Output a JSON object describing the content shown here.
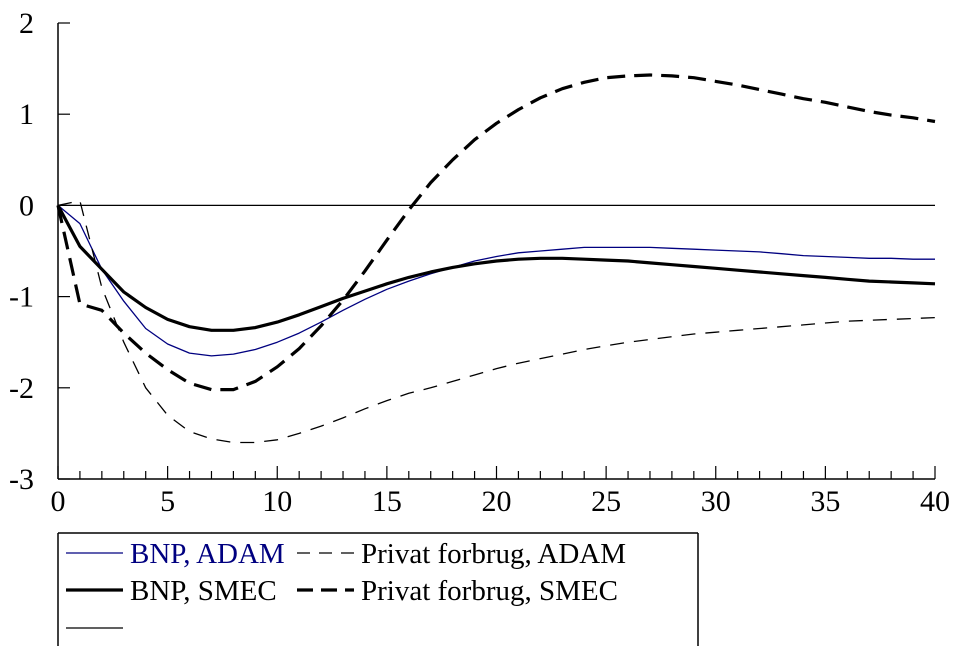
{
  "chart_data": {
    "type": "line",
    "title": "",
    "xlabel": "",
    "ylabel": "",
    "xlim": [
      0,
      40
    ],
    "ylim": [
      -3,
      2
    ],
    "x_ticks": [
      0,
      5,
      10,
      15,
      20,
      25,
      30,
      35,
      40
    ],
    "y_ticks": [
      2,
      1,
      0,
      -1,
      -2,
      -3
    ],
    "x_tick_labels": [
      "0",
      "5",
      "10",
      "15",
      "20",
      "25",
      "30",
      "35",
      "40"
    ],
    "y_tick_labels": [
      "2",
      "1",
      "0",
      "-1",
      "-2",
      "-3"
    ],
    "zero_line": true,
    "grid": false,
    "legend_position": "bottom-left",
    "series": [
      {
        "name": "BNP, ADAM",
        "color": "#000080",
        "style": "thin-solid",
        "x": [
          0,
          1,
          2,
          3,
          4,
          5,
          6,
          7,
          8,
          9,
          10,
          11,
          12,
          13,
          14,
          15,
          16,
          17,
          18,
          19,
          20,
          21,
          22,
          23,
          24,
          25,
          26,
          27,
          28,
          29,
          30,
          31,
          32,
          33,
          34,
          35,
          36,
          37,
          38,
          39,
          40
        ],
        "y": [
          0,
          -0.2,
          -0.7,
          -1.05,
          -1.35,
          -1.52,
          -1.62,
          -1.65,
          -1.63,
          -1.58,
          -1.5,
          -1.4,
          -1.28,
          -1.15,
          -1.03,
          -0.92,
          -0.83,
          -0.75,
          -0.68,
          -0.61,
          -0.56,
          -0.52,
          -0.5,
          -0.48,
          -0.46,
          -0.46,
          -0.46,
          -0.46,
          -0.47,
          -0.48,
          -0.49,
          -0.5,
          -0.51,
          -0.53,
          -0.55,
          -0.56,
          -0.57,
          -0.58,
          -0.58,
          -0.59,
          -0.59
        ]
      },
      {
        "name": "Privat forbrug, ADAM",
        "color": "#000000",
        "style": "thin-dashed",
        "x": [
          0,
          1,
          2,
          3,
          4,
          5,
          6,
          7,
          8,
          9,
          10,
          11,
          12,
          13,
          14,
          15,
          16,
          17,
          18,
          19,
          20,
          21,
          22,
          23,
          24,
          25,
          26,
          27,
          28,
          29,
          30,
          31,
          32,
          33,
          34,
          35,
          36,
          37,
          38,
          39,
          40
        ],
        "y": [
          0,
          0.05,
          -0.9,
          -1.5,
          -2.0,
          -2.3,
          -2.48,
          -2.56,
          -2.6,
          -2.6,
          -2.57,
          -2.5,
          -2.42,
          -2.33,
          -2.23,
          -2.14,
          -2.06,
          -2.0,
          -1.93,
          -1.86,
          -1.79,
          -1.73,
          -1.68,
          -1.63,
          -1.58,
          -1.54,
          -1.5,
          -1.47,
          -1.44,
          -1.41,
          -1.39,
          -1.37,
          -1.35,
          -1.33,
          -1.31,
          -1.29,
          -1.27,
          -1.26,
          -1.25,
          -1.24,
          -1.23
        ]
      },
      {
        "name": "BNP, SMEC",
        "color": "#000000",
        "style": "thick-solid",
        "x": [
          0,
          1,
          2,
          3,
          4,
          5,
          6,
          7,
          8,
          9,
          10,
          11,
          12,
          13,
          14,
          15,
          16,
          17,
          18,
          19,
          20,
          21,
          22,
          23,
          24,
          25,
          26,
          27,
          28,
          29,
          30,
          31,
          32,
          33,
          34,
          35,
          36,
          37,
          38,
          39,
          40
        ],
        "y": [
          0,
          -0.45,
          -0.7,
          -0.95,
          -1.12,
          -1.25,
          -1.33,
          -1.37,
          -1.37,
          -1.34,
          -1.28,
          -1.2,
          -1.11,
          -1.02,
          -0.94,
          -0.86,
          -0.79,
          -0.73,
          -0.68,
          -0.64,
          -0.61,
          -0.59,
          -0.58,
          -0.58,
          -0.59,
          -0.6,
          -0.61,
          -0.63,
          -0.65,
          -0.67,
          -0.69,
          -0.71,
          -0.73,
          -0.75,
          -0.77,
          -0.79,
          -0.81,
          -0.83,
          -0.84,
          -0.85,
          -0.86
        ]
      },
      {
        "name": "Privat forbrug, SMEC",
        "color": "#000000",
        "style": "thick-dashed",
        "x": [
          0,
          1,
          2,
          3,
          4,
          5,
          6,
          7,
          8,
          9,
          10,
          11,
          12,
          13,
          14,
          15,
          16,
          17,
          18,
          19,
          20,
          21,
          22,
          23,
          24,
          25,
          26,
          27,
          28,
          29,
          30,
          31,
          32,
          33,
          34,
          35,
          36,
          37,
          38,
          39,
          40
        ],
        "y": [
          0,
          -1.08,
          -1.15,
          -1.4,
          -1.62,
          -1.8,
          -1.95,
          -2.02,
          -2.02,
          -1.93,
          -1.77,
          -1.57,
          -1.32,
          -1.04,
          -0.72,
          -0.38,
          -0.05,
          0.25,
          0.5,
          0.72,
          0.9,
          1.05,
          1.18,
          1.28,
          1.35,
          1.4,
          1.42,
          1.43,
          1.42,
          1.4,
          1.36,
          1.32,
          1.27,
          1.22,
          1.17,
          1.13,
          1.08,
          1.03,
          0.99,
          0.96,
          0.92
        ]
      }
    ]
  },
  "legend": {
    "entries": [
      {
        "label": "BNP, ADAM",
        "color": "#000080",
        "style": "thin-solid"
      },
      {
        "label": "Privat forbrug, ADAM",
        "color": "#000000",
        "style": "thin-dashed"
      },
      {
        "label": "BNP, SMEC",
        "color": "#000000",
        "style": "thick-solid"
      },
      {
        "label": "Privat forbrug, SMEC",
        "color": "#000000",
        "style": "thick-dashed"
      },
      {
        "label": "",
        "color": "#000000",
        "style": "thin-solid"
      }
    ]
  }
}
